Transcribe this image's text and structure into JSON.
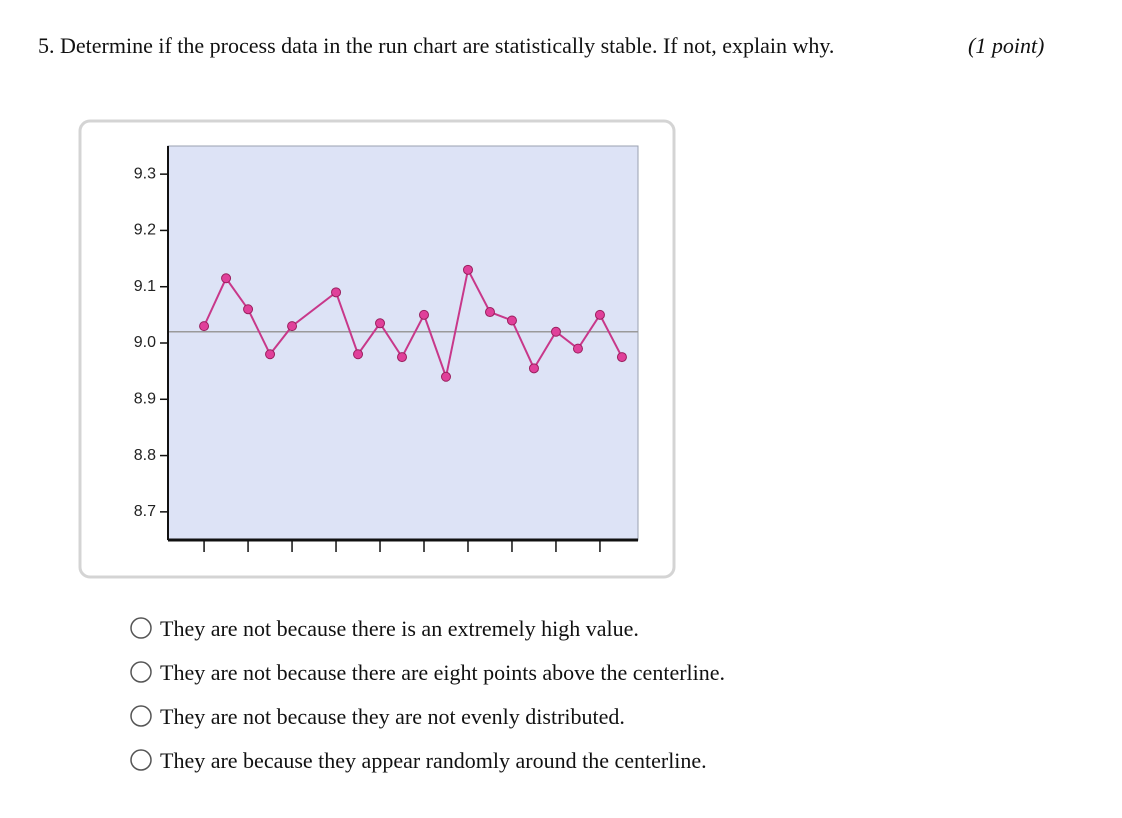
{
  "question": {
    "text": "5. Determine if the process data in the run chart are statistically stable. If not, explain why.",
    "points": "(1 point)"
  },
  "chart_data": {
    "type": "line",
    "x": [
      1,
      2,
      3,
      4,
      5,
      7,
      8,
      9,
      10,
      11,
      12,
      13,
      14,
      15,
      16,
      17,
      18,
      19,
      20
    ],
    "values": [
      9.03,
      9.115,
      9.06,
      8.98,
      9.03,
      9.09,
      8.98,
      9.035,
      8.975,
      9.05,
      8.94,
      9.13,
      9.055,
      9.04,
      8.955,
      9.02,
      8.99,
      9.05,
      8.975
    ],
    "color": "#c8388a",
    "centerline": 9.02,
    "centerline_color": "#9a9a9a",
    "background": "#dde3f6",
    "xlim": [
      -0.64,
      20.73
    ],
    "xticks": [
      1,
      3,
      5,
      7,
      9,
      11,
      13,
      15,
      17,
      19
    ],
    "ylim": [
      8.65,
      9.35
    ],
    "yticks": [
      {
        "value": 9.3,
        "label": "9.3"
      },
      {
        "value": 9.2,
        "label": "9.2"
      },
      {
        "value": 9.1,
        "label": "9.1"
      },
      {
        "value": 9.0,
        "label": "9.0"
      },
      {
        "value": 8.9,
        "label": "8.9"
      },
      {
        "value": 8.8,
        "label": "8.8"
      },
      {
        "value": 8.7,
        "label": "8.7"
      }
    ]
  },
  "options": [
    "They are not because there is an extremely high value.",
    "They are not because there are eight points above the centerline.",
    "They are not because they are not evenly distributed.",
    "They are because they appear randomly around the centerline."
  ]
}
